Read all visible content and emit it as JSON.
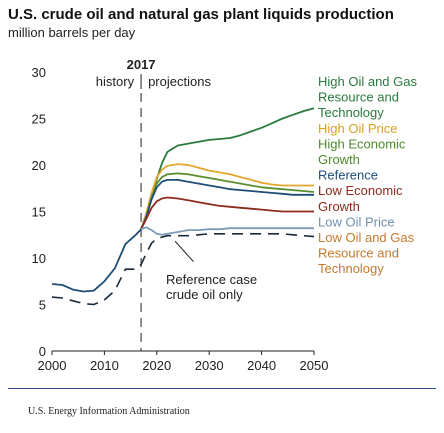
{
  "title": "U.S. crude oil and natural gas plant liquids production",
  "subtitle": "million barrels per day",
  "source": "U.S. Energy Information Administration",
  "chart_data": {
    "type": "line",
    "xlim": [
      2000,
      2050
    ],
    "ylim": [
      0,
      30
    ],
    "x_ticks": [
      2000,
      2010,
      2020,
      2030,
      2040,
      2050
    ],
    "y_ticks": [
      0,
      5,
      10,
      15,
      20,
      25,
      30
    ],
    "divider": {
      "x": 2017,
      "label": "2017",
      "left_label": "history",
      "right_label": "projections"
    },
    "history": {
      "x": [
        2000,
        2002,
        2004,
        2006,
        2008,
        2010,
        2012,
        2014,
        2016,
        2017
      ],
      "y": [
        7.2,
        7.1,
        6.6,
        6.4,
        6.5,
        7.5,
        8.9,
        11.5,
        12.5,
        13.1
      ]
    },
    "series": [
      {
        "name": "High Oil and Gas Resource and Technology",
        "color": "#2a7a3f",
        "style": "solid",
        "x": [
          2017,
          2018,
          2019,
          2020,
          2021,
          2022,
          2024,
          2026,
          2028,
          2030,
          2032,
          2034,
          2036,
          2038,
          2040,
          2042,
          2044,
          2046,
          2048,
          2050
        ],
        "y": [
          13.1,
          14.5,
          16.5,
          18.5,
          20.2,
          21.4,
          22.1,
          22.3,
          22.5,
          22.7,
          22.8,
          22.9,
          23.2,
          23.6,
          24.0,
          24.5,
          25.0,
          25.4,
          25.8,
          26.1
        ]
      },
      {
        "name": "High Oil Price",
        "color": "#e2a72c",
        "style": "solid",
        "x": [
          2017,
          2018,
          2019,
          2020,
          2021,
          2022,
          2024,
          2026,
          2028,
          2030,
          2032,
          2034,
          2036,
          2038,
          2040,
          2042,
          2044,
          2046,
          2048,
          2050
        ],
        "y": [
          13.1,
          14.8,
          17.0,
          18.7,
          19.5,
          19.9,
          20.1,
          20.0,
          19.7,
          19.4,
          19.2,
          19.0,
          18.7,
          18.4,
          18.1,
          17.9,
          17.8,
          17.8,
          17.8,
          17.8
        ]
      },
      {
        "name": "High Economic Growth",
        "color": "#5b8e2f",
        "style": "solid",
        "x": [
          2017,
          2018,
          2019,
          2020,
          2021,
          2022,
          2024,
          2026,
          2028,
          2030,
          2032,
          2034,
          2036,
          2038,
          2040,
          2042,
          2044,
          2046,
          2048,
          2050
        ],
        "y": [
          13.1,
          14.5,
          16.5,
          18.0,
          18.7,
          19.0,
          19.1,
          19.0,
          18.8,
          18.6,
          18.4,
          18.2,
          18.0,
          17.8,
          17.6,
          17.5,
          17.4,
          17.3,
          17.2,
          17.1
        ]
      },
      {
        "name": "Reference",
        "color": "#1f4e79",
        "style": "solid",
        "x": [
          2017,
          2018,
          2019,
          2020,
          2021,
          2022,
          2024,
          2026,
          2028,
          2030,
          2032,
          2034,
          2036,
          2038,
          2040,
          2042,
          2044,
          2046,
          2048,
          2050
        ],
        "y": [
          13.1,
          14.4,
          16.3,
          17.6,
          18.2,
          18.4,
          18.4,
          18.2,
          18.0,
          17.8,
          17.6,
          17.4,
          17.3,
          17.2,
          17.1,
          17.0,
          16.9,
          16.8,
          16.8,
          16.8
        ]
      },
      {
        "name": "Low Economic Growth",
        "color": "#8c2b1e",
        "style": "solid",
        "x": [
          2017,
          2018,
          2019,
          2020,
          2021,
          2022,
          2024,
          2026,
          2028,
          2030,
          2032,
          2034,
          2036,
          2038,
          2040,
          2042,
          2044,
          2046,
          2048,
          2050
        ],
        "y": [
          13.1,
          14.2,
          15.4,
          16.1,
          16.4,
          16.5,
          16.4,
          16.2,
          16.0,
          15.8,
          15.6,
          15.5,
          15.4,
          15.3,
          15.2,
          15.1,
          15.0,
          15.0,
          15.0,
          15.0
        ]
      },
      {
        "name": "Low Oil Price",
        "color": "#7d9bb8",
        "style": "solid",
        "x": [
          2017,
          2018,
          2019,
          2020,
          2021,
          2022,
          2024,
          2026,
          2028,
          2030,
          2032,
          2034,
          2036,
          2038,
          2040,
          2042,
          2044,
          2046,
          2048,
          2050
        ],
        "y": [
          13.1,
          13.3,
          13.0,
          12.6,
          12.5,
          12.6,
          12.8,
          13.0,
          13.0,
          13.1,
          13.1,
          13.2,
          13.2,
          13.2,
          13.2,
          13.2,
          13.2,
          13.2,
          13.2,
          13.2
        ]
      },
      {
        "name": "Reference case crude oil only",
        "color": "#1a2a3a",
        "style": "dashed",
        "x": [
          2000,
          2002,
          2004,
          2006,
          2008,
          2010,
          2012,
          2014,
          2016,
          2017,
          2018,
          2019,
          2020,
          2022,
          2024,
          2026,
          2028,
          2030,
          2032,
          2034,
          2036,
          2038,
          2040,
          2042,
          2044,
          2046,
          2048,
          2050
        ],
        "y": [
          5.8,
          5.7,
          5.4,
          5.1,
          5.0,
          5.5,
          6.5,
          8.8,
          8.8,
          9.3,
          10.5,
          11.6,
          12.1,
          12.4,
          12.4,
          12.4,
          12.5,
          12.6,
          12.6,
          12.6,
          12.6,
          12.6,
          12.6,
          12.6,
          12.6,
          12.5,
          12.4,
          12.3
        ]
      }
    ],
    "legend": [
      "High Oil and Gas",
      "Resource and",
      "Technology",
      "High Oil Price",
      "High Economic",
      "Growth",
      "Reference",
      "Low Economic",
      "Growth",
      "Low Oil Price",
      "Low Oil and Gas",
      "Resource and",
      "Technology"
    ],
    "legend_colors": [
      "#2a7a3f",
      "#2a7a3f",
      "#2a7a3f",
      "#d9a21f",
      "#4f8a2a",
      "#4f8a2a",
      "#1f4e79",
      "#8c2b1e",
      "#8c2b1e",
      "#6e8fb0",
      "#c47a2c",
      "#c47a2c",
      "#c47a2c"
    ],
    "annotation": [
      "Reference case",
      "crude oil only"
    ]
  }
}
